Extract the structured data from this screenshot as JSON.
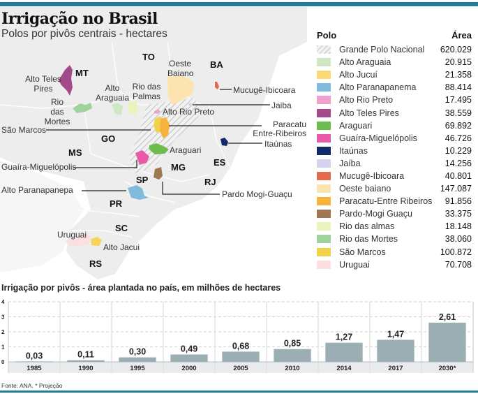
{
  "header": {
    "title": "Irrigação no Brasil",
    "subtitle": "Polos por pivôs centrais - hectares"
  },
  "map": {
    "states": [
      "MT",
      "TO",
      "BA",
      "GO",
      "MS",
      "MG",
      "ES",
      "RJ",
      "SP",
      "PR",
      "SC",
      "RS"
    ],
    "labels": {
      "alto_teles_pires": "Alto Teles Pires",
      "rio_das_mortes": "Rio das Mortes",
      "alto_araguaia": "Alto Araguaia",
      "rio_das_palmas": "Rio das Palmas",
      "oeste_baiano": "Oeste Baiano",
      "mucuge": "Mucugê-Ibicoara",
      "jaiba": "Jaiba",
      "alto_rio_preto": "Alto Rio Preto",
      "paracatu_1": "Paracatu",
      "paracatu_2": "Entre-Ribeiros",
      "sao_marcos": "São Marcos",
      "itaunas": "Itaúnas",
      "araguari": "Araguari",
      "guaira": "Guaíra-Miguelópolis",
      "alto_paranapanema": "Alto Paranapanepa",
      "pardo": "Pardo Mogi-Guaçu",
      "uruguai": "Uruguai",
      "alto_jacui": "Alto Jacui"
    }
  },
  "legend": {
    "header_polo": "Polo",
    "header_area": "Área",
    "items": [
      {
        "name": "Grande Polo Nacional",
        "value": "620.029",
        "color": "hatch"
      },
      {
        "name": "Alto Araguaia",
        "value": "20.915",
        "color": "#cfe8c4"
      },
      {
        "name": "Alto Jucuí",
        "value": "21.358",
        "color": "#fbd977"
      },
      {
        "name": "Alto Paranapanema",
        "value": "88.414",
        "color": "#7fbcdc"
      },
      {
        "name": "Alto Rio Preto",
        "value": "17.495",
        "color": "#f0a0cf"
      },
      {
        "name": "Alto Teles Pires",
        "value": "38.559",
        "color": "#a34b8a"
      },
      {
        "name": "Araguari",
        "value": "69.892",
        "color": "#6cbd4c"
      },
      {
        "name": "Guaíra-Miguelópolis",
        "value": "46.726",
        "color": "#ea5aa8"
      },
      {
        "name": "Itaúnas",
        "value": "10.229",
        "color": "#132a6a"
      },
      {
        "name": "Jaíba",
        "value": "14.256",
        "color": "#d6d3ea"
      },
      {
        "name": "Mucugê-Ibicoara",
        "value": "40.801",
        "color": "#e26a4e"
      },
      {
        "name": "Oeste baiano",
        "value": "147.087",
        "color": "#fde3ad"
      },
      {
        "name": "Paracatu-Entre Ribeiros",
        "value": "91.856",
        "color": "#f6b33f"
      },
      {
        "name": "Pardo-Mogi Guaçu",
        "value": "33.375",
        "color": "#a07850"
      },
      {
        "name": "Rio das almas",
        "value": "18.148",
        "color": "#eaf2be"
      },
      {
        "name": "Rio das Mortes",
        "value": "38.060",
        "color": "#9fd39b"
      },
      {
        "name": "São Marcos",
        "value": "100.872",
        "color": "#f1d24a"
      },
      {
        "name": "Uruguai",
        "value": "70.708",
        "color": "#fbdfe1"
      }
    ]
  },
  "chart_data": {
    "type": "bar",
    "title": "Irrigação por pivôs - área plantada no país, em milhões de hectares",
    "categories": [
      "1985",
      "1990",
      "1995",
      "2000",
      "2005",
      "2010",
      "2014",
      "2017",
      "2030*"
    ],
    "values": [
      0.03,
      0.11,
      0.3,
      0.49,
      0.68,
      0.85,
      1.27,
      1.47,
      2.61
    ],
    "value_labels": [
      "0,03",
      "0,11",
      "0,30",
      "0,49",
      "0,68",
      "0,85",
      "1,27",
      "1,47",
      "2,61"
    ],
    "yticks": [
      "0",
      "1",
      "2",
      "3",
      "4"
    ],
    "ylim": [
      0,
      4
    ],
    "xlabel": "",
    "ylabel": "",
    "grid": true,
    "bar_color": "#9aaeb3"
  },
  "footer": {
    "source": "Fonte: ANA. * Projeção"
  }
}
